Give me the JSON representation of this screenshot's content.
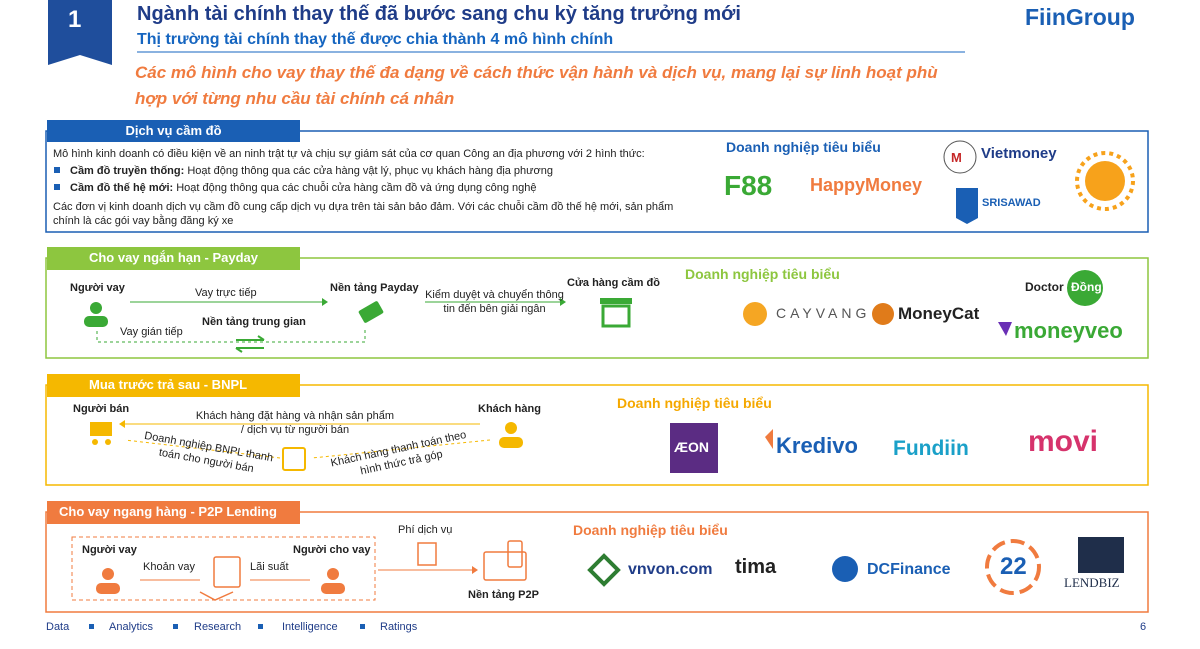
{
  "header": {
    "number": "1",
    "title": "Ngành tài chính thay thế đã bước sang chu kỳ tăng trưởng mới",
    "subtitle": "Thị trường tài chính thay thế được chia thành 4 mô hình chính",
    "logo": "FiinGroup"
  },
  "summary": "Các mô hình cho vay thay thế đa dạng về cách thức vận hành và dịch vụ, mang lại sự linh hoạt phù hợp với từng nhu cầu tài chính cá nhân",
  "sections": [
    {
      "title": "Dịch vụ cầm đồ",
      "intro": "Mô hình kinh doanh có điều kiện về an ninh trật tự và chịu sự giám sát của cơ quan Công an địa phương với 2 hình thức:",
      "bullets": [
        {
          "label": "Cầm đồ truyền thống:",
          "text": "Hoạt động thông qua các cửa hàng vật lý, phục vụ khách hàng địa phương"
        },
        {
          "label": "Cầm đồ thế hệ mới:",
          "text": "Hoạt động thông qua các chuỗi cửa hàng cầm đồ và ứng dụng công nghệ"
        }
      ],
      "closing": "Các đơn vị kinh doanh dịch vụ cầm đồ cung cấp dịch vụ dựa trên tài sản bảo đảm. Với các chuỗi cầm đồ thế hệ mới, sản phẩm chính là các gói vay bằng đăng ký xe",
      "companies_title": "Doanh nghiệp tiêu biểu",
      "companies": [
        "F88",
        "HappyMoney",
        "Vietmoney",
        "SRISAWAD"
      ]
    },
    {
      "title": "Cho vay ngắn hạn - Payday",
      "labels": [
        "Người vay",
        "Vay trực tiếp",
        "Nền tảng Payday",
        "Kiểm duyệt và chuyển thông tin đến bên giải ngân",
        "Cửa hàng cầm đồ",
        "Vay gián tiếp",
        "Nền tảng trung gian"
      ],
      "companies_title": "Doanh nghiệp tiêu biểu",
      "companies": [
        "CAYVANG",
        "MoneyCat",
        "Doctor",
        "Đồng",
        "moneyveo"
      ]
    },
    {
      "title": "Mua trước trả sau - BNPL",
      "labels": [
        "Người bán",
        "Khách hàng đặt hàng và nhận sản phẩm / dịch vụ từ người bán",
        "Khách hàng",
        "Doanh nghiệp BNPL thanh toán cho người bán",
        "Khách hàng thanh toán theo hình thức trả góp"
      ],
      "companies_title": "Doanh nghiệp tiêu biểu",
      "companies": [
        "ÆON",
        "Kredivo",
        "Fundiin",
        "movi"
      ]
    },
    {
      "title": "Cho vay ngang hàng - P2P Lending",
      "labels": [
        "Người vay",
        "Khoản vay",
        "Lãi suất",
        "Người cho vay",
        "Phí dịch vụ",
        "Nền tảng P2P"
      ],
      "companies_title": "Doanh nghiệp tiêu biểu",
      "companies": [
        "vnvon.com",
        "tima",
        "DCFinance",
        "22",
        "LENDBIZ"
      ]
    }
  ],
  "footer": {
    "items": [
      "Data",
      "Analytics",
      "Research",
      "Intelligence",
      "Ratings"
    ],
    "page": "6"
  }
}
